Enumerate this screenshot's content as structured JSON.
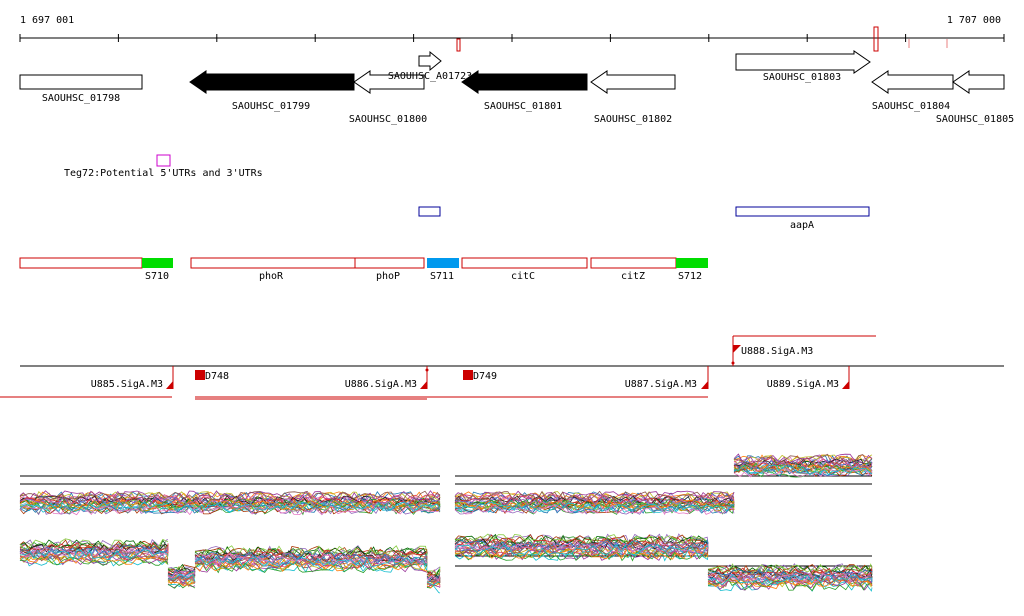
{
  "axis": {
    "left_label": "1 697 001",
    "right_label": "1 707 000"
  },
  "genes": [
    {
      "label": "SAOUHSC_01798"
    },
    {
      "label": "SAOUHSC_01799"
    },
    {
      "label": "SAOUHSC_01800"
    },
    {
      "label": "SAOUHSC_A01723"
    },
    {
      "label": "SAOUHSC_01801"
    },
    {
      "label": "SAOUHSC_01802"
    },
    {
      "label": "SAOUHSC_01803"
    },
    {
      "label": "SAOUHSC_01804"
    },
    {
      "label": "SAOUHSC_01805"
    }
  ],
  "utr_track": {
    "label": "Teg72:Potential 5'UTRs and 3'UTRs",
    "color": "#cc00cc"
  },
  "blue_feature": {
    "label": "aapA",
    "color": "#000099"
  },
  "regions": {
    "phoR": "phoR",
    "phoP": "phoP",
    "citC": "citC",
    "citZ": "citZ",
    "S710": "S710",
    "S711": "S711",
    "S712": "S712"
  },
  "colors": {
    "outline_red": "#cc0000",
    "green": "#00dd00",
    "blue": "#0099ee",
    "arrow_fill": "#000000"
  },
  "promoters": {
    "U885": "U885.SigA.M3",
    "U886": "U886.SigA.M3",
    "U887": "U887.SigA.M3",
    "U888": "U888.SigA.M3",
    "U889": "U889.SigA.M3",
    "D748": "D748",
    "D749": "D749"
  }
}
